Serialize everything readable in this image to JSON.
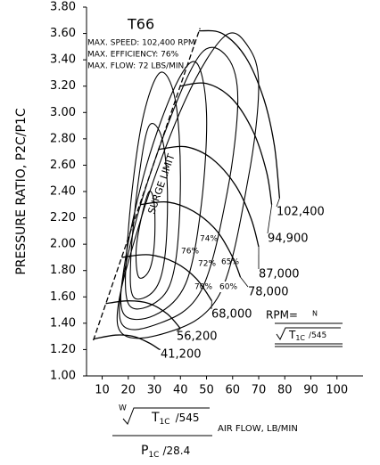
{
  "chart_data": {
    "type": "line",
    "title": "T66",
    "annotations": {
      "max_speed": "MAX. SPEED: 102,400 RPM",
      "max_efficiency": "MAX. EFFICIENCY: 76%",
      "max_flow": "MAX. FLOW: 72 LBS/MIN."
    },
    "y_label": "PRESSURE RATIO, P2C/P1C",
    "x_label": {
      "numerator_w": "W",
      "numerator_t": "T",
      "numerator_sub": "1C",
      "numerator_rest": "/545",
      "denominator_p": "P",
      "denominator_sub": "1C",
      "denominator_rest": "/28.4",
      "text": "AIR FLOW, LB/MIN"
    },
    "rpm_formula": {
      "lhs": "RPM=",
      "numerator": "N",
      "t": "T",
      "sub": "1C",
      "rest": "/545"
    },
    "xlim": [
      4,
      110
    ],
    "xticks": [
      10,
      20,
      30,
      40,
      50,
      60,
      70,
      80,
      90,
      100
    ],
    "ylim": [
      1.0,
      3.8
    ],
    "yticks": [
      {
        "value": 1.0,
        "label": "1.00"
      },
      {
        "value": 1.2,
        "label": "1.20"
      },
      {
        "value": 1.4,
        "label": "1.40"
      },
      {
        "value": 1.6,
        "label": "1.60"
      },
      {
        "value": 1.8,
        "label": "1.80"
      },
      {
        "value": 2.0,
        "label": "2.00"
      },
      {
        "value": 2.2,
        "label": "2.20"
      },
      {
        "value": 2.4,
        "label": "2.40"
      },
      {
        "value": 2.6,
        "label": "2.60"
      },
      {
        "value": 2.8,
        "label": "2.80"
      },
      {
        "value": 3.0,
        "label": "3.00"
      },
      {
        "value": 3.2,
        "label": "3.20"
      },
      {
        "value": 3.4,
        "label": "3.40"
      },
      {
        "value": 3.6,
        "label": "3.60"
      },
      {
        "value": 3.8,
        "label": "3.80"
      }
    ],
    "color": "#000000",
    "surge_line": {
      "label": "SURGE LIMIT",
      "x": [
        6.6,
        47.5
      ],
      "values": [
        1.27,
        3.64
      ]
    },
    "series": [
      {
        "name": "41,200",
        "x": [
          6.6,
          15,
          22,
          28,
          32
        ],
        "values": [
          1.28,
          1.31,
          1.3,
          1.25,
          1.2
        ]
      },
      {
        "name": "56,200",
        "x": [
          11.4,
          20,
          28,
          35,
          40
        ],
        "values": [
          1.55,
          1.57,
          1.55,
          1.47,
          1.36
        ]
      },
      {
        "name": "68,000",
        "x": [
          17.5,
          28,
          38,
          46,
          52
        ],
        "values": [
          1.9,
          1.92,
          1.86,
          1.74,
          1.57
        ]
      },
      {
        "name": "78,000",
        "x": [
          24.4,
          35,
          45,
          54,
          60,
          63
        ],
        "values": [
          2.3,
          2.32,
          2.25,
          2.1,
          1.9,
          1.75
        ]
      },
      {
        "name": "87,000",
        "x": [
          31.6,
          42,
          52,
          61,
          67,
          70
        ],
        "values": [
          2.72,
          2.74,
          2.65,
          2.45,
          2.2,
          1.98
        ]
      },
      {
        "name": "94,900",
        "x": [
          39.9,
          50,
          60,
          68,
          73,
          75
        ],
        "values": [
          3.2,
          3.22,
          3.1,
          2.85,
          2.55,
          2.3
        ]
      },
      {
        "name": "102,400",
        "x": [
          47.1,
          56,
          65,
          72,
          76,
          78
        ],
        "values": [
          3.62,
          3.6,
          3.42,
          3.1,
          2.75,
          2.35
        ]
      }
    ],
    "efficiency_islands": [
      {
        "name": "76%",
        "x": [
          24,
          28,
          30,
          30,
          28,
          25,
          23
        ],
        "values": [
          1.75,
          1.8,
          2.0,
          2.3,
          2.4,
          2.2,
          1.95
        ]
      },
      {
        "name": "74%",
        "x": [
          22,
          30,
          34,
          35,
          33,
          28,
          24,
          21
        ],
        "values": [
          1.6,
          1.65,
          1.9,
          2.4,
          2.8,
          2.9,
          2.5,
          1.9
        ]
      },
      {
        "name": "72%",
        "x": [
          20,
          32,
          38,
          40,
          38,
          32,
          25,
          20
        ],
        "values": [
          1.55,
          1.58,
          1.85,
          2.5,
          3.1,
          3.3,
          2.9,
          2.1
        ]
      },
      {
        "name": "70%",
        "x": [
          18,
          30,
          42,
          48,
          50,
          46,
          38,
          27,
          19
        ],
        "values": [
          1.48,
          1.46,
          1.7,
          2.3,
          3.0,
          3.38,
          3.2,
          2.6,
          1.9
        ]
      },
      {
        "name": "65%",
        "x": [
          17,
          32,
          48,
          58,
          62,
          58,
          48,
          35,
          22
        ],
        "values": [
          1.42,
          1.4,
          1.65,
          2.4,
          3.1,
          3.42,
          3.45,
          2.9,
          2.1
        ]
      },
      {
        "name": "60%",
        "x": [
          16,
          35,
          55,
          66,
          70,
          66,
          57,
          42,
          25
        ],
        "values": [
          1.38,
          1.33,
          1.62,
          2.5,
          3.2,
          3.5,
          3.58,
          3.1,
          2.2
        ]
      }
    ]
  }
}
